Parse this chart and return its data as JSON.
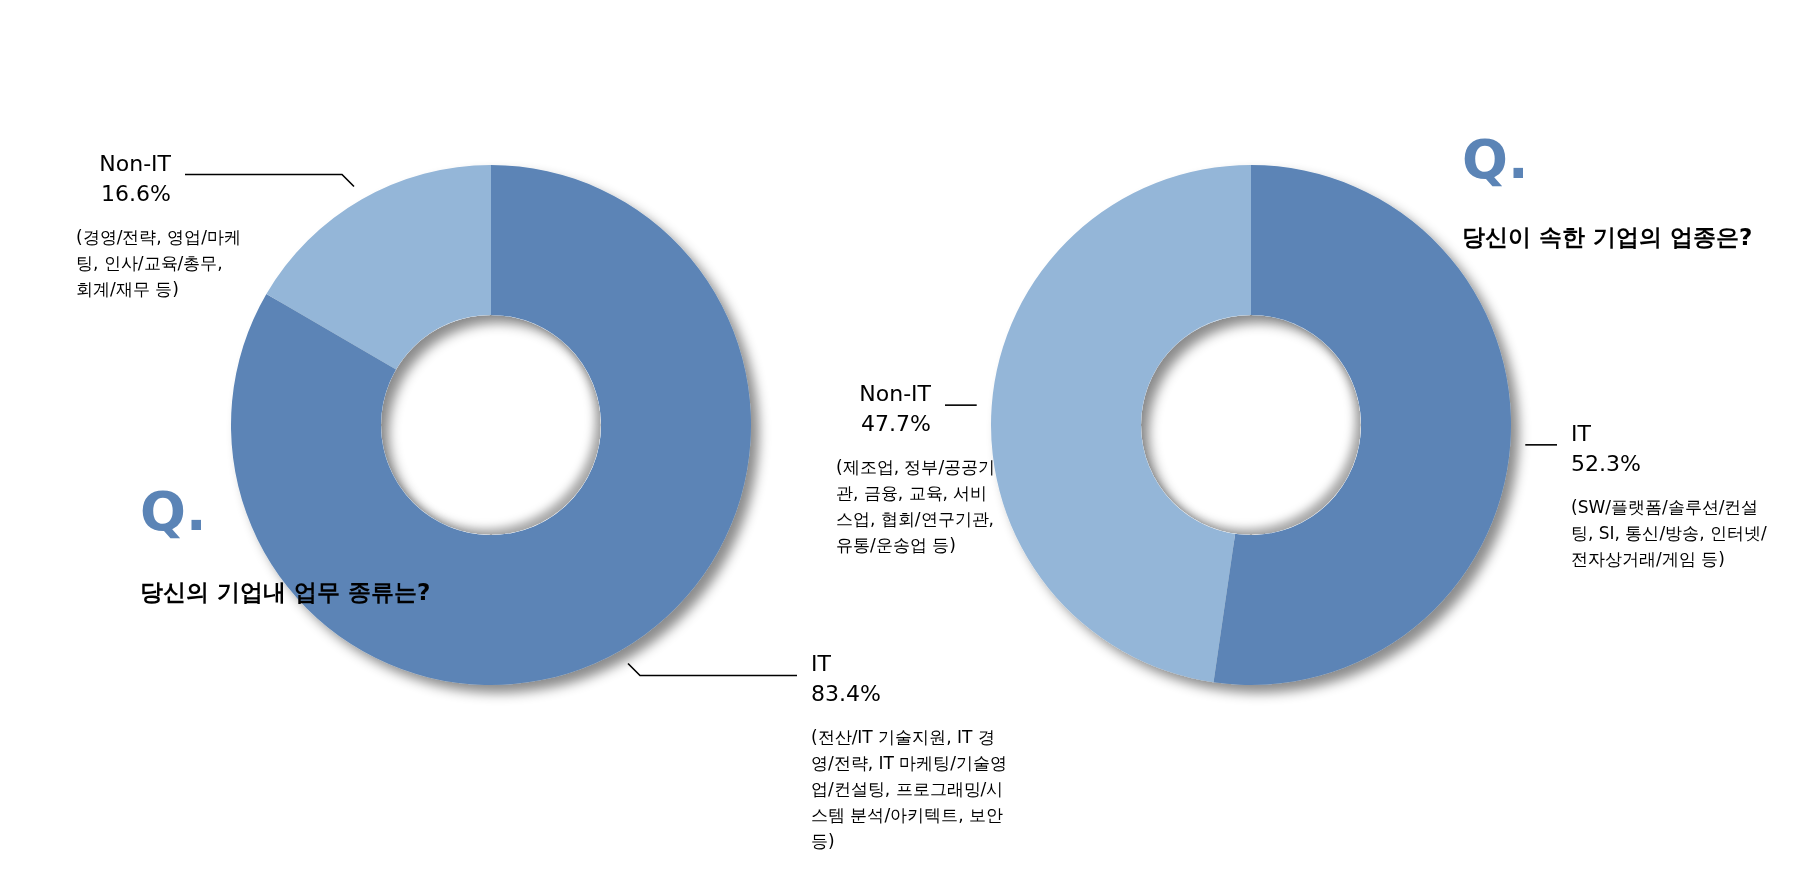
{
  "chart_data": [
    {
      "type": "donut",
      "title": "Q.",
      "subtitle": "당신의 기업내 업무 종류는?",
      "categories": [
        "IT",
        "Non-IT"
      ],
      "values": [
        83.4,
        16.6
      ],
      "value_labels": [
        "83.4%",
        "16.6%"
      ],
      "colors": [
        "#5b84b6",
        "#94b6d8"
      ],
      "annotations": [
        "(전산/IT 기술지원, IT 경영/전략, IT 마케팅/기술영업/컨설팅, 프로그래밍/시스템 분석/아키텍트, 보안 등)",
        "(경영/전략, 영업/마케팅, 인사/교육/총무, 회계/재무 등)"
      ]
    },
    {
      "type": "donut",
      "title": "Q.",
      "subtitle": "당신이 속한 기업의 업종은?",
      "categories": [
        "IT",
        "Non-IT"
      ],
      "values": [
        52.3,
        47.7
      ],
      "value_labels": [
        "52.3%",
        "47.7%"
      ],
      "colors": [
        "#5b84b6",
        "#94b6d8"
      ],
      "annotations": [
        "(SW/플랫폼/솔루션/컨설팅, SI, 통신/방송, 인터넷/전자상거래/게임 등)",
        "(제조업, 정부/공공기관, 금융, 교육, 서비스업, 협회/연구기관, 유통/운송업 등)"
      ]
    }
  ]
}
